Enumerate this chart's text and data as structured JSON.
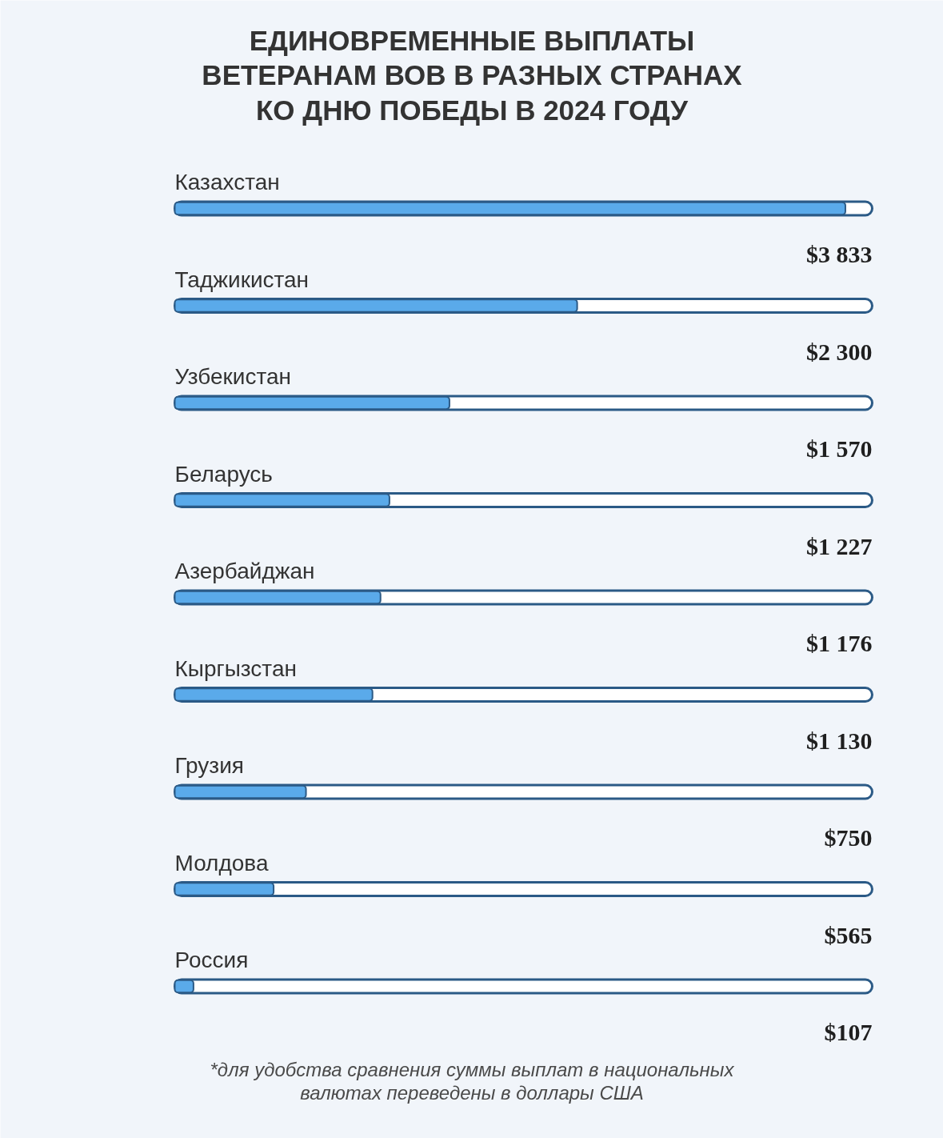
{
  "chart_data": {
    "type": "bar",
    "orientation": "horizontal",
    "title": "ЕДИНОВРЕМЕННЫЕ ВЫПЛАТЫ\nВЕТЕРАНАМ ВОВ В РАЗНЫХ СТРАНАХ\nКО ДНЮ ПОБЕДЫ В 2024 ГОДУ",
    "categories": [
      "Казахстан",
      "Таджикистан",
      "Узбекистан",
      "Беларусь",
      "Азербайджан",
      "Кыргызстан",
      "Грузия",
      "Молдова",
      "Россия"
    ],
    "values": [
      3833,
      2300,
      1570,
      1227,
      1176,
      1130,
      750,
      565,
      107
    ],
    "value_labels": [
      "$3 833",
      "$2 300",
      "$1 570",
      "$1 227",
      "$1 176",
      "$1 130",
      "$750",
      "$565",
      "$107"
    ],
    "color": "#5aaaea",
    "annotations": [
      "*для удобства сравнения суммы выплат в национальных\nвалютах переведены в доллары США"
    ]
  }
}
